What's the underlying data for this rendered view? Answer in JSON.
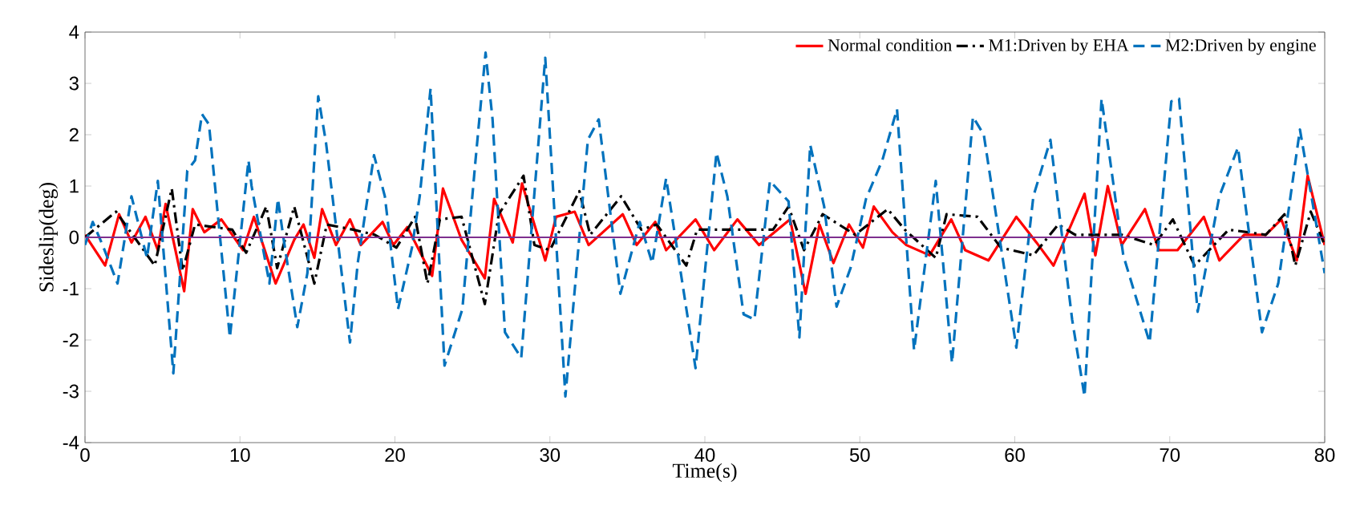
{
  "chart_data": {
    "type": "line",
    "xlabel": "Time(s)",
    "ylabel": "Sideslip(deg)",
    "xlim": [
      0,
      80
    ],
    "ylim": [
      -4,
      4
    ],
    "xticks": [
      0,
      10,
      20,
      30,
      40,
      50,
      60,
      70,
      80
    ],
    "yticks": [
      -4,
      -3,
      -2,
      -1,
      0,
      1,
      2,
      3,
      4
    ],
    "legend": "top right",
    "ref_lines": [
      {
        "axis": "y",
        "value": 0,
        "color": "#7e2f8e"
      }
    ],
    "series": [
      {
        "name": "Normal condition",
        "color": "#ff0000",
        "line_style": "solid",
        "x": [
          0,
          1.3,
          2.2,
          3.0,
          3.9,
          4.7,
          5.2,
          6.4,
          6.95,
          7.7,
          8.8,
          10.2,
          10.9,
          12.3,
          13.5,
          14.1,
          14.8,
          15.3,
          16.2,
          17.1,
          17.8,
          19.2,
          19.9,
          20.8,
          22.4,
          23.1,
          24.3,
          25.8,
          26.4,
          27.6,
          28.2,
          29.7,
          30.4,
          31.6,
          32.5,
          34.7,
          35.6,
          36.8,
          37.5,
          39.4,
          40.6,
          42.1,
          43.5,
          45.5,
          46.5,
          47.4,
          48.3,
          49.3,
          50.2,
          50.9,
          52.1,
          53.0,
          54.5,
          55.9,
          56.8,
          58.3,
          60.1,
          61.4,
          62.5,
          64.5,
          65.2,
          66.0,
          66.9,
          68.4,
          69.3,
          70.5,
          72.2,
          73.2,
          74.8,
          76.2,
          77.2,
          78.2,
          78.9,
          80
        ],
        "values": [
          0.05,
          -0.55,
          0.45,
          -0.1,
          0.4,
          -0.25,
          0.65,
          -1.05,
          0.55,
          0.1,
          0.35,
          -0.25,
          0.4,
          -0.9,
          -0.05,
          0.25,
          -0.4,
          0.55,
          -0.15,
          0.35,
          -0.15,
          0.3,
          -0.15,
          0.2,
          -0.75,
          0.95,
          -0.05,
          -0.8,
          0.75,
          -0.1,
          1.05,
          -0.45,
          0.4,
          0.5,
          -0.15,
          0.45,
          -0.15,
          0.3,
          -0.25,
          0.35,
          -0.25,
          0.35,
          -0.15,
          0.35,
          -1.1,
          0.25,
          -0.5,
          0.25,
          -0.2,
          0.6,
          0.1,
          -0.15,
          -0.35,
          0.35,
          -0.25,
          -0.45,
          0.4,
          -0.1,
          -0.55,
          0.85,
          -0.35,
          1.0,
          -0.15,
          0.55,
          -0.25,
          -0.25,
          0.4,
          -0.45,
          0.05,
          0.05,
          0.35,
          -0.45,
          1.2,
          -0.15
        ]
      },
      {
        "name": "M1:Driven by EHA",
        "color": "#000000",
        "line_style": "dashdot",
        "x": [
          0,
          2.0,
          4.5,
          5.6,
          6.3,
          7.1,
          9.5,
          10.4,
          11.7,
          12.4,
          13.5,
          14.8,
          15.6,
          17.3,
          18.7,
          20.1,
          21.3,
          22.1,
          22.9,
          24.3,
          25.8,
          26.7,
          28.3,
          29.0,
          30.0,
          31.9,
          32.6,
          34.6,
          35.9,
          36.9,
          38.8,
          39.5,
          42.5,
          44.4,
          45.4,
          46.4,
          47.6,
          49.7,
          51.8,
          52.9,
          54.9,
          55.6,
          57.6,
          59.1,
          61.2,
          62.8,
          63.9,
          66.9,
          69.0,
          70.2,
          71.6,
          73.8,
          76.2,
          77.4,
          78.1,
          79.1,
          80
        ],
        "values": [
          0.0,
          0.5,
          -0.55,
          0.95,
          -0.65,
          0.25,
          0.15,
          -0.3,
          0.6,
          -0.6,
          0.6,
          -0.9,
          0.25,
          0.15,
          0.05,
          -0.2,
          0.4,
          -0.9,
          0.35,
          0.4,
          -1.3,
          0.45,
          1.2,
          -0.15,
          -0.25,
          0.9,
          0.05,
          0.8,
          0.15,
          0.25,
          -0.55,
          0.15,
          0.15,
          0.15,
          0.6,
          -0.25,
          0.45,
          0.05,
          0.55,
          0.15,
          -0.4,
          0.45,
          0.4,
          -0.2,
          -0.35,
          0.25,
          0.05,
          0.05,
          -0.15,
          0.35,
          -0.55,
          0.15,
          0.05,
          0.45,
          -0.55,
          0.5,
          -0.15
        ]
      },
      {
        "name": "M2:Driven by engine",
        "color": "#0072bd",
        "line_style": "dashed",
        "x": [
          0,
          0.5,
          1.2,
          2.1,
          3.0,
          4.0,
          4.7,
          5.7,
          6.6,
          7.1,
          7.55,
          8.0,
          9.35,
          10.55,
          10.75,
          11.9,
          12.45,
          12.8,
          13.7,
          14.35,
          15.05,
          15.55,
          17.1,
          17.6,
          18.65,
          19.35,
          20.2,
          21.1,
          21.6,
          22.3,
          23.2,
          24.35,
          25.2,
          25.85,
          26.3,
          27.1,
          28.15,
          29.7,
          31.0,
          32.45,
          33.15,
          34.55,
          35.8,
          36.6,
          37.5,
          38.4,
          39.4,
          40.75,
          41.45,
          42.5,
          43.2,
          44.2,
          45.4,
          46.1,
          46.8,
          47.7,
          48.5,
          49.4,
          50.4,
          51.45,
          52.4,
          53.5,
          54.9,
          55.95,
          57.3,
          58.0,
          60.1,
          61.2,
          62.3,
          63.7,
          64.5,
          65.6,
          67.0,
          68.7,
          70.1,
          70.6,
          71.8,
          73.2,
          74.4,
          75.95,
          77.0,
          78.4,
          80
        ],
        "values": [
          -0.15,
          0.3,
          -0.2,
          -0.9,
          0.8,
          -0.4,
          1.1,
          -2.65,
          1.3,
          1.5,
          2.4,
          2.2,
          -1.95,
          1.5,
          1.0,
          -0.9,
          0.75,
          0.0,
          -1.75,
          -0.7,
          2.75,
          1.85,
          -2.05,
          -0.5,
          1.6,
          0.8,
          -1.4,
          -0.2,
          0.8,
          2.9,
          -2.5,
          -1.4,
          1.5,
          3.6,
          2.3,
          -1.85,
          -2.35,
          3.5,
          -3.1,
          1.9,
          2.3,
          -1.1,
          0.3,
          -0.5,
          1.15,
          -0.6,
          -2.55,
          1.65,
          0.8,
          -1.5,
          -1.6,
          1.1,
          0.7,
          -1.95,
          1.8,
          0.6,
          -1.35,
          -0.6,
          0.75,
          1.5,
          2.5,
          -2.2,
          1.1,
          -2.45,
          2.35,
          2.0,
          -2.15,
          0.8,
          1.9,
          -1.6,
          -3.1,
          2.7,
          -0.35,
          -2.05,
          2.65,
          2.7,
          -1.45,
          0.8,
          1.75,
          -1.85,
          -0.9,
          2.1,
          -0.7
        ]
      }
    ]
  }
}
